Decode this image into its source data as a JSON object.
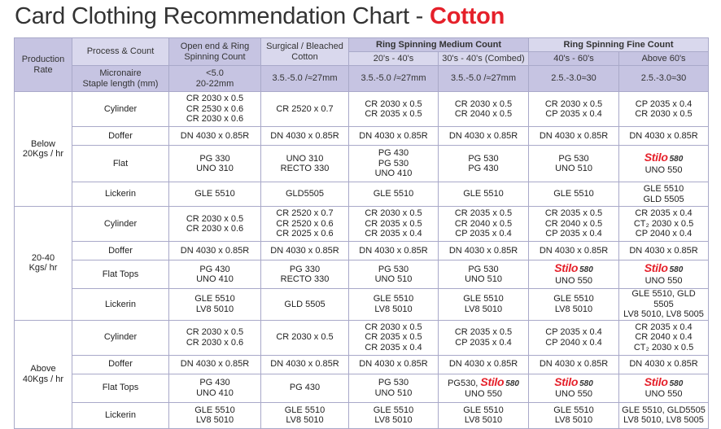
{
  "title": {
    "main": "Card Clothing Recommendation Chart - ",
    "highlight": "Cotton"
  },
  "colors": {
    "accent": "#e5202a",
    "header_dark": "#c6c4e2",
    "header_light": "#d9d8ed",
    "border": "#a9a9c9"
  },
  "header": {
    "production_rate": "Production Rate",
    "process_count": "Process & Count",
    "micronaire": "Micronaire",
    "staple": "Staple length (mm)",
    "open_end": "Open end & Ring Spinning Count",
    "surgical": "Surgical / Bleached Cotton",
    "medium": "Ring Spinning Medium Count",
    "fine": "Ring Spinning Fine Count",
    "sub": [
      "20's - 40's",
      "30's - 40's (Combed)",
      "40's - 60's",
      "Above 60's"
    ],
    "spec": [
      [
        "<5.0",
        "20-22mm"
      ],
      [
        "3.5.-5.0 /≈27mm"
      ],
      [
        "3.5.-5.0 /≈27mm"
      ],
      [
        "3.5.-5.0 /≈27mm"
      ],
      [
        "2.5.-3.0≈30"
      ],
      [
        "2.5.-3.0≈30"
      ]
    ]
  },
  "groups": [
    {
      "rate": [
        "Below",
        "20Kgs / hr"
      ],
      "rows": [
        {
          "process": "Cylinder",
          "cells": [
            [
              "CR 2030 x 0.5",
              "CR 2530 x 0.6",
              "CR 2030 x 0.6"
            ],
            [
              "CR 2520 x 0.7"
            ],
            [
              "CR 2030 x 0.5",
              "CR 2035 x 0.5"
            ],
            [
              "CR 2030 x 0.5",
              "CR 2040 x 0.5"
            ],
            [
              "CR 2030 x 0.5",
              "CP 2035 x 0.4"
            ],
            [
              "CP 2035 x 0.4",
              "CR 2030 x 0.5"
            ]
          ]
        },
        {
          "process": "Doffer",
          "cells": [
            [
              "DN 4030 x 0.85R"
            ],
            [
              "DN 4030 x 0.85R"
            ],
            [
              "DN 4030 x 0.85R"
            ],
            [
              "DN 4030 x 0.85R"
            ],
            [
              "DN 4030 x 0.85R"
            ],
            [
              "DN 4030 x 0.85R"
            ]
          ]
        },
        {
          "process": "Flat",
          "cells": [
            [
              "PG 330",
              "UNO 310"
            ],
            [
              "UNO 310",
              "RECTO 330"
            ],
            [
              "PG 430",
              "PG 530",
              "UNO 410"
            ],
            [
              "PG 530",
              "PG 430"
            ],
            [
              "PG 530",
              "UNO 510"
            ],
            [
              {
                "prefix": "",
                "logo": "Stilo",
                "model": "580"
              },
              "UNO 550"
            ]
          ]
        },
        {
          "process": "Lickerin",
          "cells": [
            [
              "GLE 5510"
            ],
            [
              "GLD5505"
            ],
            [
              "GLE 5510"
            ],
            [
              "GLE 5510"
            ],
            [
              "GLE 5510"
            ],
            [
              "GLE 5510",
              "GLD 5505"
            ]
          ]
        }
      ]
    },
    {
      "rate": [
        "20-40",
        "Kgs/ hr"
      ],
      "rows": [
        {
          "process": "Cylinder",
          "cells": [
            [
              "CR 2030 x 0.5",
              "CR 2030 x 0.6"
            ],
            [
              "CR 2520 x 0.7",
              "CR 2520 x 0.6",
              "CR 2025 x 0.6"
            ],
            [
              "CR 2030 x 0.5",
              "CR 2035 x 0.5",
              "CR 2035 x 0.4"
            ],
            [
              "CR 2035 x 0.5",
              "CR 2040 x 0.5",
              "CP 2035 x 0.4"
            ],
            [
              "CR 2035 x 0.5",
              "CR 2040 x 0.5",
              "CP 2035 x 0.4"
            ],
            [
              "CR 2035 x 0.4",
              "CT₂ 2030 x 0.5",
              "CP 2040 x 0.4"
            ]
          ]
        },
        {
          "process": "Doffer",
          "cells": [
            [
              "DN 4030 x 0.85R"
            ],
            [
              "DN 4030 x 0.85R"
            ],
            [
              "DN 4030 x 0.85R"
            ],
            [
              "DN 4030 x 0.85R"
            ],
            [
              "DN 4030 x 0.85R"
            ],
            [
              "DN 4030 x 0.85R"
            ]
          ]
        },
        {
          "process": "Flat Tops",
          "cells": [
            [
              "PG 430",
              "UNO 410"
            ],
            [
              "PG 330",
              "RECTO 330"
            ],
            [
              "PG 530",
              "UNO 510"
            ],
            [
              "PG 530",
              "UNO 510"
            ],
            [
              {
                "prefix": "",
                "logo": "Stilo",
                "model": "580"
              },
              "UNO 550"
            ],
            [
              {
                "prefix": "",
                "logo": "Stilo",
                "model": "580"
              },
              "UNO 550"
            ]
          ]
        },
        {
          "process": "Lickerin",
          "cells": [
            [
              "GLE 5510",
              "LV8 5010"
            ],
            [
              "GLD 5505"
            ],
            [
              "GLE 5510",
              "LV8 5010"
            ],
            [
              "GLE 5510",
              "LV8 5010"
            ],
            [
              "GLE 5510",
              "LV8 5010"
            ],
            [
              "GLE 5510, GLD 5505",
              "LV8 5010, LV8 5005"
            ]
          ]
        }
      ]
    },
    {
      "rate": [
        "Above",
        "40Kgs / hr"
      ],
      "rows": [
        {
          "process": "Cylinder",
          "cells": [
            [
              "CR 2030 x 0.5",
              "CR 2030 x 0.6"
            ],
            [
              "CR 2030 x 0.5"
            ],
            [
              "CR 2030 x 0.5",
              "CR 2035 x 0.5",
              "CR 2035 x 0.4"
            ],
            [
              "CR 2035 x 0.5",
              "CP 2035 x 0.4"
            ],
            [
              "CP 2035 x 0.4",
              "CP 2040 x 0.4"
            ],
            [
              "CR 2035 x 0.4",
              "CR 2040 x 0.4",
              "CT₂ 2030 x 0.5"
            ]
          ]
        },
        {
          "process": "Doffer",
          "cells": [
            [
              "DN 4030 x 0.85R"
            ],
            [
              "DN 4030 x 0.85R"
            ],
            [
              "DN 4030 x 0.85R"
            ],
            [
              "DN 4030 x 0.85R"
            ],
            [
              "DN 4030 x 0.85R"
            ],
            [
              "DN 4030 x 0.85R"
            ]
          ]
        },
        {
          "process": "Flat Tops",
          "cells": [
            [
              "PG 430",
              "UNO 410"
            ],
            [
              "PG 430"
            ],
            [
              "PG 530",
              "UNO 510"
            ],
            [
              {
                "prefix": "PG530, ",
                "logo": "Stilo",
                "model": "580"
              },
              "UNO 550"
            ],
            [
              {
                "prefix": "",
                "logo": "Stilo",
                "model": "580"
              },
              "UNO 550"
            ],
            [
              {
                "prefix": "",
                "logo": "Stilo",
                "model": "580"
              },
              "UNO 550"
            ]
          ]
        },
        {
          "process": "Lickerin",
          "cells": [
            [
              "GLE 5510",
              "LV8 5010"
            ],
            [
              "GLE 5510",
              "LV8 5010"
            ],
            [
              "GLE 5510",
              "LV8 5010"
            ],
            [
              "GLE 5510",
              "LV8 5010"
            ],
            [
              "GLE 5510",
              "LV8 5010"
            ],
            [
              "GLE 5510, GLD5505",
              "LV8 5010, LV8 5005"
            ]
          ]
        }
      ]
    }
  ]
}
